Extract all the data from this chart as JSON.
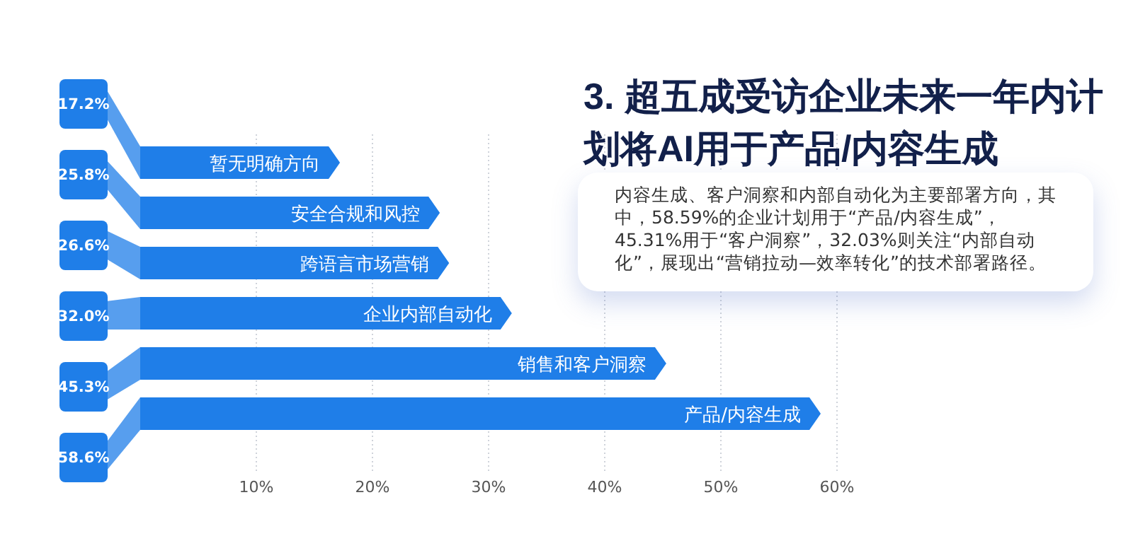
{
  "chart_data": {
    "type": "bar",
    "orientation": "horizontal",
    "title": "3. 超五成受访企业未来一年内计划将AI用于产品/内容生成",
    "annotations": [
      "内容生成、客户洞察和内部自动化为主要部署方向，其中，58.59%的企业计划用于“产品/内容生成”，45.31%用于“客户洞察”，32.03%则关注“内部自动化”，展现出“营销拉动—效率转化”的技术部署路径。"
    ],
    "categories": [
      "暂无明确方向",
      "安全合规和风控",
      "跨语言市场营销",
      "企业内部自动化",
      "销售和客户洞察",
      "产品/内容生成"
    ],
    "values": [
      17.2,
      25.8,
      26.6,
      32.0,
      45.3,
      58.6
    ],
    "value_labels": [
      "17.2%",
      "25.8%",
      "26.6%",
      "32.0%",
      "45.3%",
      "58.6%"
    ],
    "color": "#1f7ee8",
    "xlim": [
      0,
      60
    ],
    "xticks": [
      {
        "value": 10,
        "label": "10%"
      },
      {
        "value": 20,
        "label": "20%"
      },
      {
        "value": 30,
        "label": "30%"
      },
      {
        "value": 40,
        "label": "40%"
      },
      {
        "value": 50,
        "label": "50%"
      },
      {
        "value": 60,
        "label": "60%"
      }
    ],
    "grid": "x"
  }
}
